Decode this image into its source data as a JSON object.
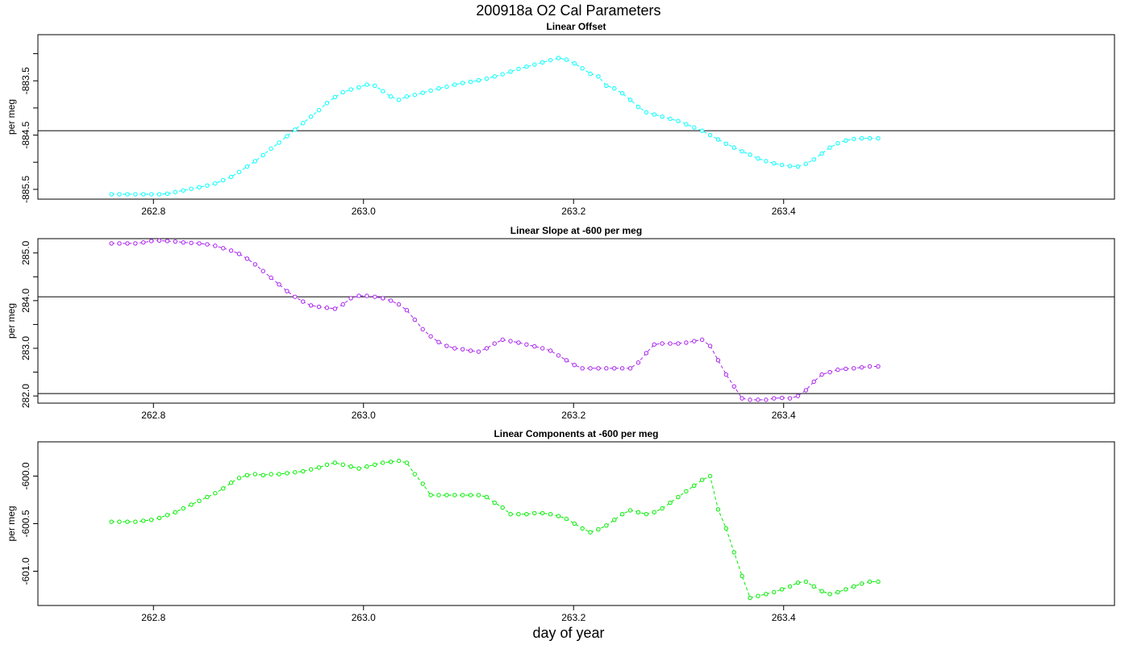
{
  "figure": {
    "title": "200918a   O2 Cal Parameters",
    "xlabel": "day of year"
  },
  "chart_data": [
    {
      "type": "line",
      "title": "Linear Offset",
      "ylabel": "per meg",
      "color": "#00ffff",
      "xlim": [
        262.69,
        263.715
      ],
      "ylim": [
        -885.68,
        -882.65
      ],
      "xticks": [
        262.8,
        263.0,
        263.2,
        263.4
      ],
      "xtick_labels": [
        "262.8",
        "263.0",
        "263.2",
        "263.4"
      ],
      "yticks": [
        -885.5,
        -885.0,
        -884.5,
        -884.0,
        -883.5,
        -883.0
      ],
      "ytick_labels": [
        "-885.5",
        "",
        "-884.5",
        "",
        "-883.5",
        ""
      ],
      "hlines": [
        -884.42
      ],
      "x": [
        262.76,
        262.7676,
        262.7752,
        262.7828,
        262.7904,
        262.798,
        262.8056,
        262.8132,
        262.8208,
        262.8284,
        262.836,
        262.8436,
        262.8512,
        262.8588,
        262.8664,
        262.874,
        262.8816,
        262.8892,
        262.8968,
        262.9044,
        262.912,
        262.9196,
        262.9272,
        262.9348,
        262.9424,
        262.95,
        262.9576,
        262.9652,
        262.9728,
        262.9804,
        262.988,
        262.9956,
        263.0032,
        263.0108,
        263.0184,
        263.026,
        263.0336,
        263.0412,
        263.0488,
        263.0564,
        263.064,
        263.0716,
        263.0792,
        263.0868,
        263.0944,
        263.102,
        263.1096,
        263.1172,
        263.1248,
        263.1324,
        263.14,
        263.1476,
        263.1552,
        263.1628,
        263.1704,
        263.178,
        263.1856,
        263.1932,
        263.2008,
        263.2084,
        263.216,
        263.2236,
        263.2312,
        263.2388,
        263.2464,
        263.254,
        263.2616,
        263.2692,
        263.2768,
        263.2844,
        263.292,
        263.2996,
        263.3072,
        263.3148,
        263.3224,
        263.33,
        263.3376,
        263.3452,
        263.3528,
        263.3604,
        263.368,
        263.3756,
        263.3832,
        263.3908,
        263.3984,
        263.406,
        263.4136,
        263.4212,
        263.4288,
        263.4364,
        263.444,
        263.4516,
        263.4592,
        263.4668,
        263.4744,
        263.482,
        263.49
      ],
      "y": [
        -885.59,
        -885.59,
        -885.59,
        -885.59,
        -885.59,
        -885.59,
        -885.59,
        -885.58,
        -885.55,
        -885.52,
        -885.49,
        -885.46,
        -885.43,
        -885.39,
        -885.33,
        -885.27,
        -885.18,
        -885.08,
        -884.98,
        -884.87,
        -884.75,
        -884.64,
        -884.52,
        -884.4,
        -884.28,
        -884.16,
        -884.04,
        -883.91,
        -883.8,
        -883.71,
        -883.66,
        -883.62,
        -883.57,
        -883.59,
        -883.69,
        -883.79,
        -883.85,
        -883.79,
        -883.76,
        -883.72,
        -883.68,
        -883.64,
        -883.61,
        -883.57,
        -883.54,
        -883.52,
        -883.49,
        -883.46,
        -883.42,
        -883.38,
        -883.33,
        -883.28,
        -883.24,
        -883.2,
        -883.16,
        -883.12,
        -883.08,
        -883.11,
        -883.18,
        -883.27,
        -883.37,
        -883.42,
        -883.59,
        -883.64,
        -883.73,
        -883.85,
        -883.98,
        -884.08,
        -884.12,
        -884.16,
        -884.2,
        -884.24,
        -884.3,
        -884.36,
        -884.42,
        -884.5,
        -884.58,
        -884.66,
        -884.73,
        -884.8,
        -884.86,
        -884.93,
        -884.98,
        -885.02,
        -885.05,
        -885.07,
        -885.08,
        -885.03,
        -884.95,
        -884.84,
        -884.73,
        -884.65,
        -884.6,
        -884.57,
        -884.56,
        -884.56,
        -884.56
      ]
    },
    {
      "type": "line",
      "title": "Linear Slope at -600 per meg",
      "ylabel": "per meg",
      "color": "#aa22ee",
      "xlim": [
        262.69,
        263.715
      ],
      "ylim": [
        281.85,
        285.3
      ],
      "xticks": [
        262.8,
        263.0,
        263.2,
        263.4
      ],
      "xtick_labels": [
        "262.8",
        "263.0",
        "263.2",
        "263.4"
      ],
      "yticks": [
        282.0,
        282.5,
        283.0,
        283.5,
        284.0,
        284.5,
        285.0
      ],
      "ytick_labels": [
        "282.0",
        "",
        "283.0",
        "",
        "284.0",
        "",
        "285.0"
      ],
      "hlines": [
        284.08,
        282.05
      ],
      "x": [
        262.76,
        262.7676,
        262.7752,
        262.7828,
        262.7904,
        262.798,
        262.8056,
        262.8132,
        262.8208,
        262.8284,
        262.836,
        262.8436,
        262.8512,
        262.8588,
        262.8664,
        262.874,
        262.8816,
        262.8892,
        262.8968,
        262.9044,
        262.912,
        262.9196,
        262.9272,
        262.9348,
        262.9424,
        262.95,
        262.9576,
        262.9652,
        262.9728,
        262.9804,
        262.988,
        262.9956,
        263.0032,
        263.0108,
        263.0184,
        263.026,
        263.0336,
        263.0412,
        263.0488,
        263.0564,
        263.064,
        263.0716,
        263.0792,
        263.0868,
        263.0944,
        263.102,
        263.1096,
        263.1172,
        263.1248,
        263.1324,
        263.14,
        263.1476,
        263.1552,
        263.1628,
        263.1704,
        263.178,
        263.1856,
        263.1932,
        263.2008,
        263.2084,
        263.216,
        263.2236,
        263.2312,
        263.2388,
        263.2464,
        263.254,
        263.2616,
        263.2692,
        263.2768,
        263.2844,
        263.292,
        263.2996,
        263.3072,
        263.3148,
        263.3224,
        263.33,
        263.3376,
        263.3452,
        263.3528,
        263.3604,
        263.368,
        263.3756,
        263.3832,
        263.3908,
        263.3984,
        263.406,
        263.4136,
        263.4212,
        263.4288,
        263.4364,
        263.444,
        263.4516,
        263.4592,
        263.4668,
        263.4744,
        263.482,
        263.49
      ],
      "y": [
        285.2,
        285.2,
        285.2,
        285.2,
        285.22,
        285.25,
        285.26,
        285.25,
        285.24,
        285.22,
        285.21,
        285.2,
        285.18,
        285.15,
        285.1,
        285.05,
        284.98,
        284.88,
        284.76,
        284.62,
        284.48,
        284.34,
        284.2,
        284.08,
        283.98,
        283.9,
        283.87,
        283.85,
        283.83,
        283.92,
        284.05,
        284.1,
        284.1,
        284.08,
        284.05,
        284.0,
        283.92,
        283.8,
        283.6,
        283.4,
        283.25,
        283.13,
        283.05,
        283.0,
        282.98,
        282.95,
        282.93,
        283.0,
        283.1,
        283.18,
        283.15,
        283.12,
        283.08,
        283.04,
        283.0,
        282.95,
        282.85,
        282.75,
        282.65,
        282.58,
        282.58,
        282.58,
        282.58,
        282.58,
        282.58,
        282.58,
        282.7,
        282.9,
        283.08,
        283.1,
        283.1,
        283.1,
        283.12,
        283.15,
        283.18,
        283.05,
        282.75,
        282.45,
        282.2,
        281.95,
        281.92,
        281.92,
        281.92,
        281.95,
        281.96,
        281.95,
        282.0,
        282.12,
        282.3,
        282.45,
        282.5,
        282.55,
        282.57,
        282.58,
        282.6,
        282.62,
        282.62
      ]
    },
    {
      "type": "line",
      "title": "Linear Components at -600 per meg",
      "ylabel": "per meg",
      "color": "#00ee00",
      "xlim": [
        262.69,
        263.715
      ],
      "ylim": [
        -601.36,
        -599.64
      ],
      "xticks": [
        262.8,
        263.0,
        263.2,
        263.4
      ],
      "xtick_labels": [
        "262.8",
        "263.0",
        "263.2",
        "263.4"
      ],
      "yticks": [
        -601.0,
        -600.5,
        -600.0
      ],
      "ytick_labels": [
        "-601.0",
        "-600.5",
        "-600.0"
      ],
      "hlines": [],
      "x": [
        262.76,
        262.7676,
        262.7752,
        262.7828,
        262.7904,
        262.798,
        262.8056,
        262.8132,
        262.8208,
        262.8284,
        262.836,
        262.8436,
        262.8512,
        262.8588,
        262.8664,
        262.874,
        262.8816,
        262.8892,
        262.8968,
        262.9044,
        262.912,
        262.9196,
        262.9272,
        262.9348,
        262.9424,
        262.95,
        262.9576,
        262.9652,
        262.9728,
        262.9804,
        262.988,
        262.9956,
        263.0032,
        263.0108,
        263.0184,
        263.026,
        263.0336,
        263.0412,
        263.0488,
        263.0564,
        263.064,
        263.0716,
        263.0792,
        263.0868,
        263.0944,
        263.102,
        263.1096,
        263.1172,
        263.1248,
        263.1324,
        263.14,
        263.1476,
        263.1552,
        263.1628,
        263.1704,
        263.178,
        263.1856,
        263.1932,
        263.2008,
        263.2084,
        263.216,
        263.2236,
        263.2312,
        263.2388,
        263.2464,
        263.254,
        263.2616,
        263.2692,
        263.2768,
        263.2844,
        263.292,
        263.2996,
        263.3072,
        263.3148,
        263.3224,
        263.33,
        263.3376,
        263.3452,
        263.3528,
        263.3604,
        263.368,
        263.3756,
        263.3832,
        263.3908,
        263.3984,
        263.406,
        263.4136,
        263.4212,
        263.4288,
        263.4364,
        263.444,
        263.4516,
        263.4592,
        263.4668,
        263.4744,
        263.482,
        263.49
      ],
      "y": [
        -600.48,
        -600.48,
        -600.48,
        -600.48,
        -600.47,
        -600.46,
        -600.44,
        -600.41,
        -600.38,
        -600.34,
        -600.3,
        -600.26,
        -600.22,
        -600.18,
        -600.13,
        -600.07,
        -600.02,
        -599.99,
        -599.98,
        -599.99,
        -599.98,
        -599.98,
        -599.97,
        -599.96,
        -599.95,
        -599.93,
        -599.91,
        -599.88,
        -599.86,
        -599.88,
        -599.9,
        -599.92,
        -599.9,
        -599.88,
        -599.86,
        -599.85,
        -599.84,
        -599.86,
        -599.98,
        -600.08,
        -600.2,
        -600.2,
        -600.2,
        -600.2,
        -600.2,
        -600.2,
        -600.2,
        -600.22,
        -600.28,
        -600.33,
        -600.4,
        -600.4,
        -600.4,
        -600.39,
        -600.39,
        -600.4,
        -600.42,
        -600.45,
        -600.5,
        -600.55,
        -600.59,
        -600.56,
        -600.52,
        -600.46,
        -600.4,
        -600.36,
        -600.38,
        -600.4,
        -600.38,
        -600.34,
        -600.28,
        -600.22,
        -600.16,
        -600.1,
        -600.04,
        -600.0,
        -600.35,
        -600.55,
        -600.8,
        -601.05,
        -601.28,
        -601.26,
        -601.24,
        -601.22,
        -601.19,
        -601.16,
        -601.12,
        -601.11,
        -601.16,
        -601.21,
        -601.24,
        -601.22,
        -601.19,
        -601.16,
        -601.13,
        -601.11,
        -601.11
      ]
    }
  ]
}
